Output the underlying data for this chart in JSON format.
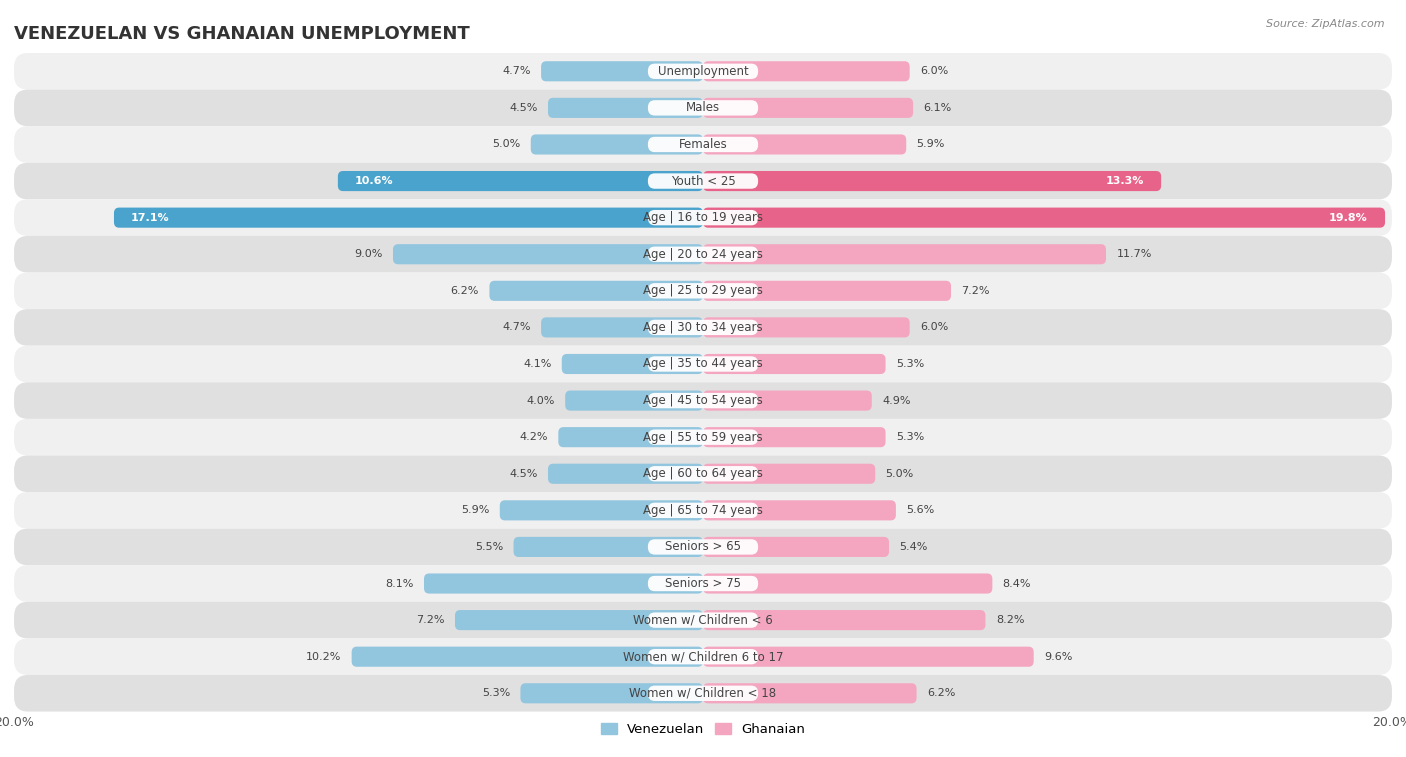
{
  "title": "VENEZUELAN VS GHANAIAN UNEMPLOYMENT",
  "source": "Source: ZipAtlas.com",
  "categories": [
    "Unemployment",
    "Males",
    "Females",
    "Youth < 25",
    "Age | 16 to 19 years",
    "Age | 20 to 24 years",
    "Age | 25 to 29 years",
    "Age | 30 to 34 years",
    "Age | 35 to 44 years",
    "Age | 45 to 54 years",
    "Age | 55 to 59 years",
    "Age | 60 to 64 years",
    "Age | 65 to 74 years",
    "Seniors > 65",
    "Seniors > 75",
    "Women w/ Children < 6",
    "Women w/ Children 6 to 17",
    "Women w/ Children < 18"
  ],
  "venezuelan": [
    4.7,
    4.5,
    5.0,
    10.6,
    17.1,
    9.0,
    6.2,
    4.7,
    4.1,
    4.0,
    4.2,
    4.5,
    5.9,
    5.5,
    8.1,
    7.2,
    10.2,
    5.3
  ],
  "ghanaian": [
    6.0,
    6.1,
    5.9,
    13.3,
    19.8,
    11.7,
    7.2,
    6.0,
    5.3,
    4.9,
    5.3,
    5.0,
    5.6,
    5.4,
    8.4,
    8.2,
    9.6,
    6.2
  ],
  "venezuelan_color": "#92c5de",
  "ghanaian_color": "#f4a6c0",
  "venezuelan_highlight_color": "#4aa3cc",
  "ghanaian_highlight_color": "#e8638a",
  "row_bg_colors": [
    "#f0f0f0",
    "#e0e0e0"
  ],
  "axis_limit": 20.0,
  "bar_height": 0.55,
  "legend_label_venezuelan": "Venezuelan",
  "legend_label_ghanaian": "Ghanaian",
  "title_fontsize": 13,
  "label_fontsize": 8.5,
  "value_fontsize": 8,
  "source_fontsize": 8,
  "highlight_indices": [
    3,
    4
  ]
}
